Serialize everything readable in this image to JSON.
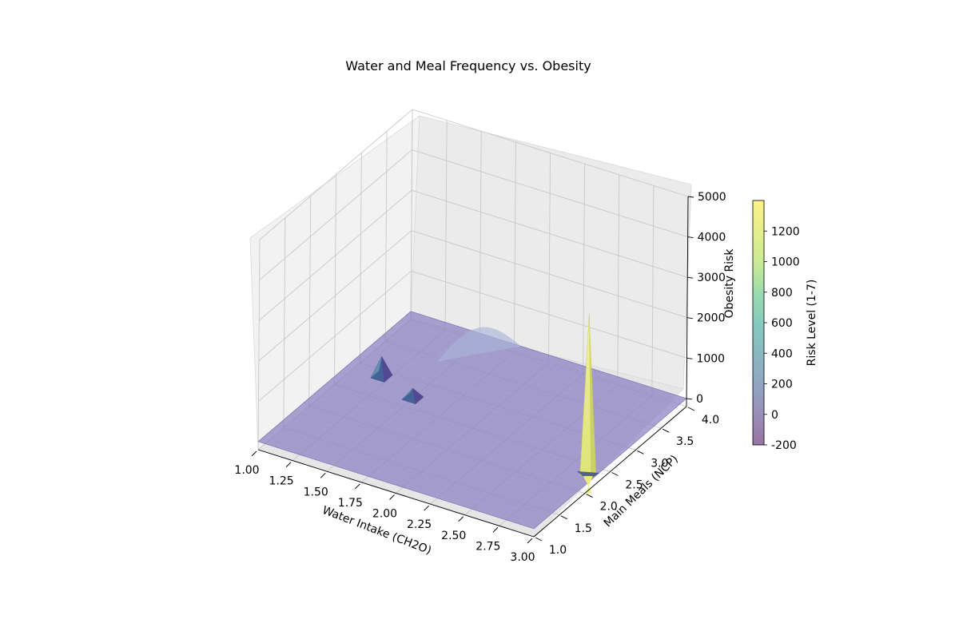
{
  "chart_data": {
    "type": "surface3d",
    "title": "Water and Meal Frequency vs. Obesity",
    "xlabel": "Water Intake (CH2O)",
    "ylabel": "Main Meals (NCP)",
    "zlabel": "Obesity Risk",
    "xlim": [
      1.0,
      3.0
    ],
    "ylim": [
      1.0,
      4.0
    ],
    "zlim": [
      -200,
      5000
    ],
    "x_ticks": [
      "1.00",
      "1.25",
      "1.50",
      "1.75",
      "2.00",
      "2.25",
      "2.50",
      "2.75",
      "3.00"
    ],
    "y_ticks": [
      "1.0",
      "1.5",
      "2.0",
      "2.5",
      "3.0",
      "3.5",
      "4.0"
    ],
    "z_ticks": [
      "0",
      "1000",
      "2000",
      "3000",
      "4000",
      "5000"
    ],
    "grid": true,
    "colormap": "viridis",
    "surface_alpha": 0.5,
    "base_level": 0,
    "features": [
      {
        "kind": "ridge",
        "x": 1.45,
        "y_range": [
          3.3,
          4.0
        ],
        "z": 650
      },
      {
        "kind": "spike",
        "x": 1.25,
        "y": 2.75,
        "z": 500
      },
      {
        "kind": "spike",
        "x": 1.55,
        "y": 2.55,
        "z": 250
      },
      {
        "kind": "spike",
        "x": 2.95,
        "y": 2.2,
        "z": 4000
      },
      {
        "kind": "dip",
        "x": 2.95,
        "y": 2.2,
        "z": -150
      }
    ],
    "colorbar": {
      "label": "Risk Level (1-7)",
      "range": [
        -200,
        1400
      ],
      "ticks": [
        "-200",
        "0",
        "200",
        "400",
        "600",
        "800",
        "1000",
        "1200"
      ],
      "placement": "right"
    }
  }
}
